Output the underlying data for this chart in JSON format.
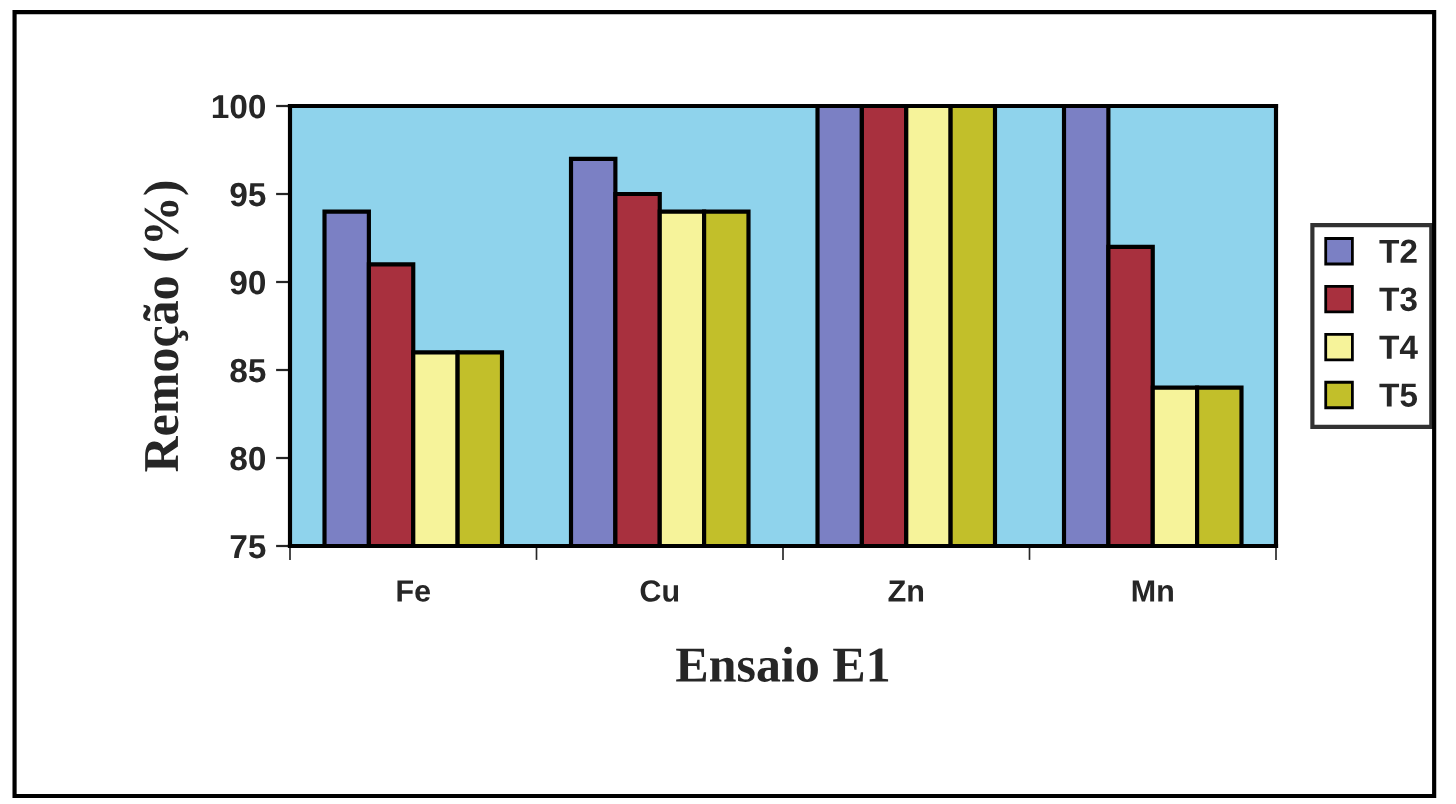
{
  "chart_data": {
    "type": "bar",
    "xlabel": "Ensaio E1",
    "ylabel": "Remoção (%)",
    "categories": [
      "Fe",
      "Cu",
      "Zn",
      "Mn"
    ],
    "series": [
      {
        "name": "T2",
        "color": "#7b80c4",
        "values": [
          94,
          97,
          100,
          100
        ]
      },
      {
        "name": "T3",
        "color": "#a8303e",
        "values": [
          91,
          95,
          100,
          92
        ]
      },
      {
        "name": "T4",
        "color": "#f6f39a",
        "values": [
          86,
          94,
          100,
          84
        ]
      },
      {
        "name": "T5",
        "color": "#c2bf2a",
        "values": [
          86,
          94,
          100,
          84
        ]
      }
    ],
    "ylim": [
      75,
      100
    ],
    "yticks": [
      75,
      80,
      85,
      90,
      95,
      100
    ],
    "grid": false,
    "legend": "right"
  }
}
